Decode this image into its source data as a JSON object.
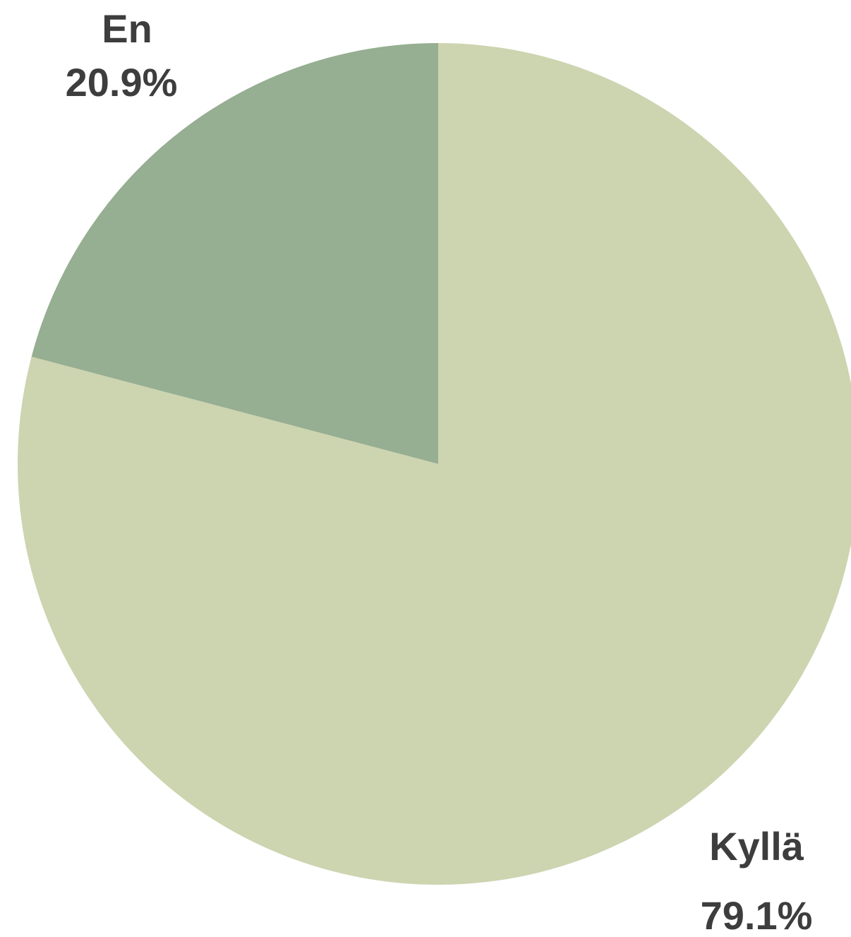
{
  "chart_data": {
    "type": "pie",
    "slices": [
      {
        "label": "Kyllä",
        "percent_label": "79.1%",
        "value": 79.1,
        "color": "#cdd4b0"
      },
      {
        "label": "En",
        "percent_label": "20.9%",
        "value": 20.9,
        "color": "#96ae91"
      }
    ],
    "start_angle": "12 o'clock",
    "direction": "clockwise",
    "legend": "none",
    "label_color": "#3d3d3d",
    "background": "#ffffff"
  }
}
